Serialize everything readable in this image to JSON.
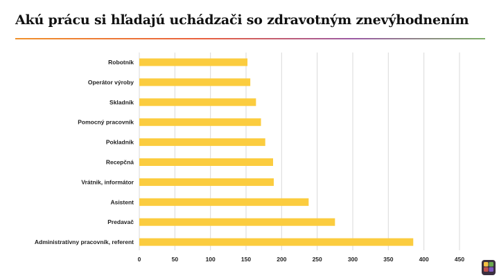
{
  "slide": {
    "title": "Akú prácu si hľadajú uchádzači so zdravotným znevýhodnením"
  },
  "colors": {
    "bar": "#fbcc3f",
    "grid": "#d9d9d9",
    "title_rule": [
      "#f0902a",
      "#e95f3c",
      "#9b5aa4",
      "#7fb069"
    ],
    "logo": [
      "#f5c242",
      "#6aa84f",
      "#c0504d",
      "#7e57c2"
    ]
  },
  "chart_data": {
    "type": "bar",
    "orientation": "horizontal",
    "categories": [
      "Robotník",
      "Operátor výroby",
      "Skladník",
      "Pomocný pracovník",
      "Pokladník",
      "Recepčná",
      "Vrátnik, informátor",
      "Asistent",
      "Predavač",
      "Administratívny pracovník, referent"
    ],
    "values": [
      152,
      156,
      164,
      171,
      177,
      188,
      189,
      238,
      275,
      385
    ],
    "xlim": [
      0,
      450
    ],
    "xticks": [
      "0",
      "50",
      "100",
      "150",
      "200",
      "250",
      "300",
      "350",
      "400",
      "450"
    ],
    "grid": true,
    "legend": "none"
  }
}
